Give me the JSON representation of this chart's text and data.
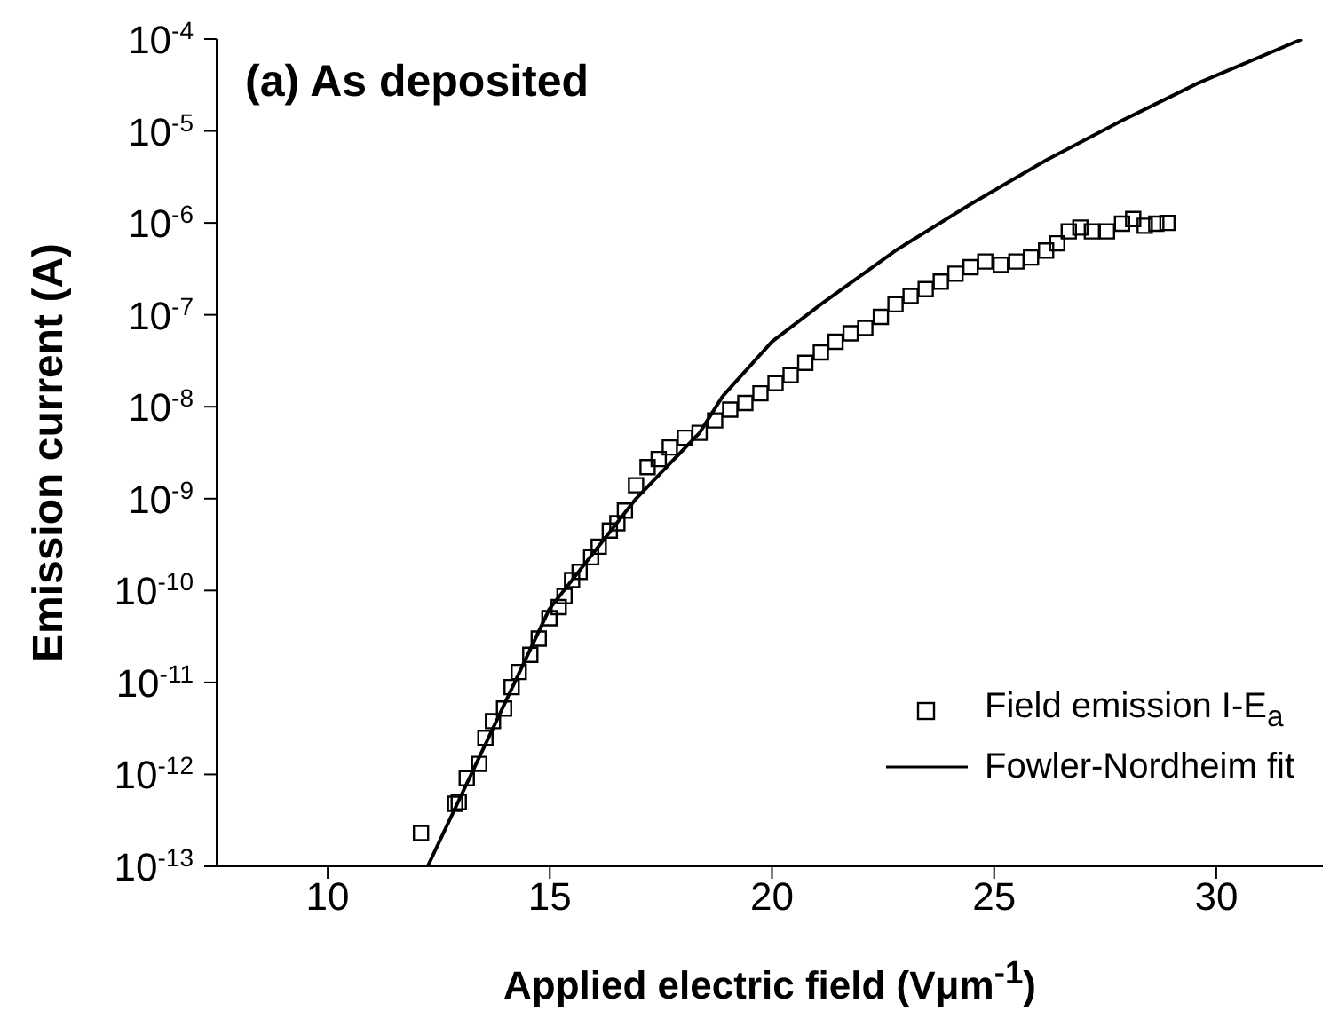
{
  "chart_data": {
    "type": "scatter",
    "title": "(a) As deposited",
    "xlabel": "Applied electric field (Vμm$^{-1}$)",
    "ylabel": "Emission current (A)",
    "xlim": [
      7.5,
      32.4
    ],
    "xticks": [
      10,
      15,
      20,
      25,
      30
    ],
    "ylim": [
      1e-13,
      0.0001
    ],
    "log": "y",
    "yticks": [
      {
        "value": 0.0001,
        "label": "10$^{-4}$"
      },
      {
        "value": 1e-05,
        "label": "10$^{-5}$"
      },
      {
        "value": 1e-06,
        "label": "10$^{-6}$"
      },
      {
        "value": 1e-07,
        "label": "10$^{-7}$"
      },
      {
        "value": 1e-08,
        "label": "10$^{-8}$"
      },
      {
        "value": 1e-09,
        "label": "10$^{-9}$"
      },
      {
        "value": 1e-10,
        "label": "10$^{-10}$"
      },
      {
        "value": 1e-11,
        "label": "10$^{-11}$"
      },
      {
        "value": 1e-12,
        "label": "10$^{-12}$"
      },
      {
        "value": 1e-13,
        "label": "10$^{-13}$"
      }
    ],
    "grid": false,
    "legend": "bottom right",
    "series": [
      {
        "name": "Field emission I-E$_{a}$",
        "color": "#000000",
        "marker": "square",
        "x": [
          12.1,
          12.87,
          12.95,
          13.13,
          13.41,
          13.55,
          13.72,
          13.97,
          14.14,
          14.3,
          14.56,
          14.75,
          14.99,
          15.2,
          15.33,
          15.5,
          15.67,
          15.93,
          16.1,
          16.35,
          16.52,
          16.69,
          16.94,
          17.2,
          17.45,
          17.7,
          18.04,
          18.37,
          18.72,
          19.06,
          19.4,
          19.74,
          20.08,
          20.42,
          20.75,
          21.1,
          21.43,
          21.77,
          22.1,
          22.45,
          22.78,
          23.12,
          23.46,
          23.8,
          24.13,
          24.47,
          24.8,
          25.15,
          25.5,
          25.83,
          26.17,
          26.42,
          26.68,
          26.94,
          27.2,
          27.54,
          27.88,
          28.13,
          28.39,
          28.65,
          28.9
        ],
        "values": [
          2.3e-13,
          4.8e-13,
          5e-13,
          9.1e-13,
          1.3e-12,
          2.5e-12,
          3.8e-12,
          5.2e-12,
          8.9e-12,
          1.3e-11,
          2e-11,
          3e-11,
          5e-11,
          6.6e-11,
          8.7e-11,
          1.3e-10,
          1.6e-10,
          2.3e-10,
          3e-10,
          4.5e-10,
          5.4e-10,
          7.4e-10,
          1.4e-09,
          2.2e-09,
          2.7e-09,
          3.6e-09,
          4.6e-09,
          5.2e-09,
          7.1e-09,
          9.3e-09,
          1.1e-08,
          1.4e-08,
          1.8e-08,
          2.2e-08,
          3e-08,
          3.9e-08,
          5.1e-08,
          6.3e-08,
          7.2e-08,
          9.5e-08,
          1.3e-07,
          1.6e-07,
          1.9e-07,
          2.3e-07,
          2.8e-07,
          3.3e-07,
          3.8e-07,
          3.5e-07,
          3.8e-07,
          4.2e-07,
          5e-07,
          6e-07,
          8.1e-07,
          8.9e-07,
          8.1e-07,
          8.1e-07,
          9.8e-07,
          1.1e-06,
          9.3e-07,
          9.8e-07,
          1e-06
        ]
      },
      {
        "name": "Fowler-Nordheim fit",
        "type": "line",
        "color": "#000000",
        "marker": "none",
        "line_style": "solid",
        "x": [
          12.25,
          14.99,
          16.94,
          18.37,
          18.89,
          20.0,
          21.1,
          22.78,
          24.47,
          26.17,
          27.88,
          29.58,
          31.94
        ],
        "values": [
          1e-13,
          6.3e-11,
          1e-09,
          5.2e-09,
          1.3e-08,
          5.1e-08,
          1.3e-07,
          5e-07,
          1.6e-06,
          4.8e-06,
          1.3e-05,
          3.3e-05,
          0.0001
        ]
      }
    ]
  }
}
